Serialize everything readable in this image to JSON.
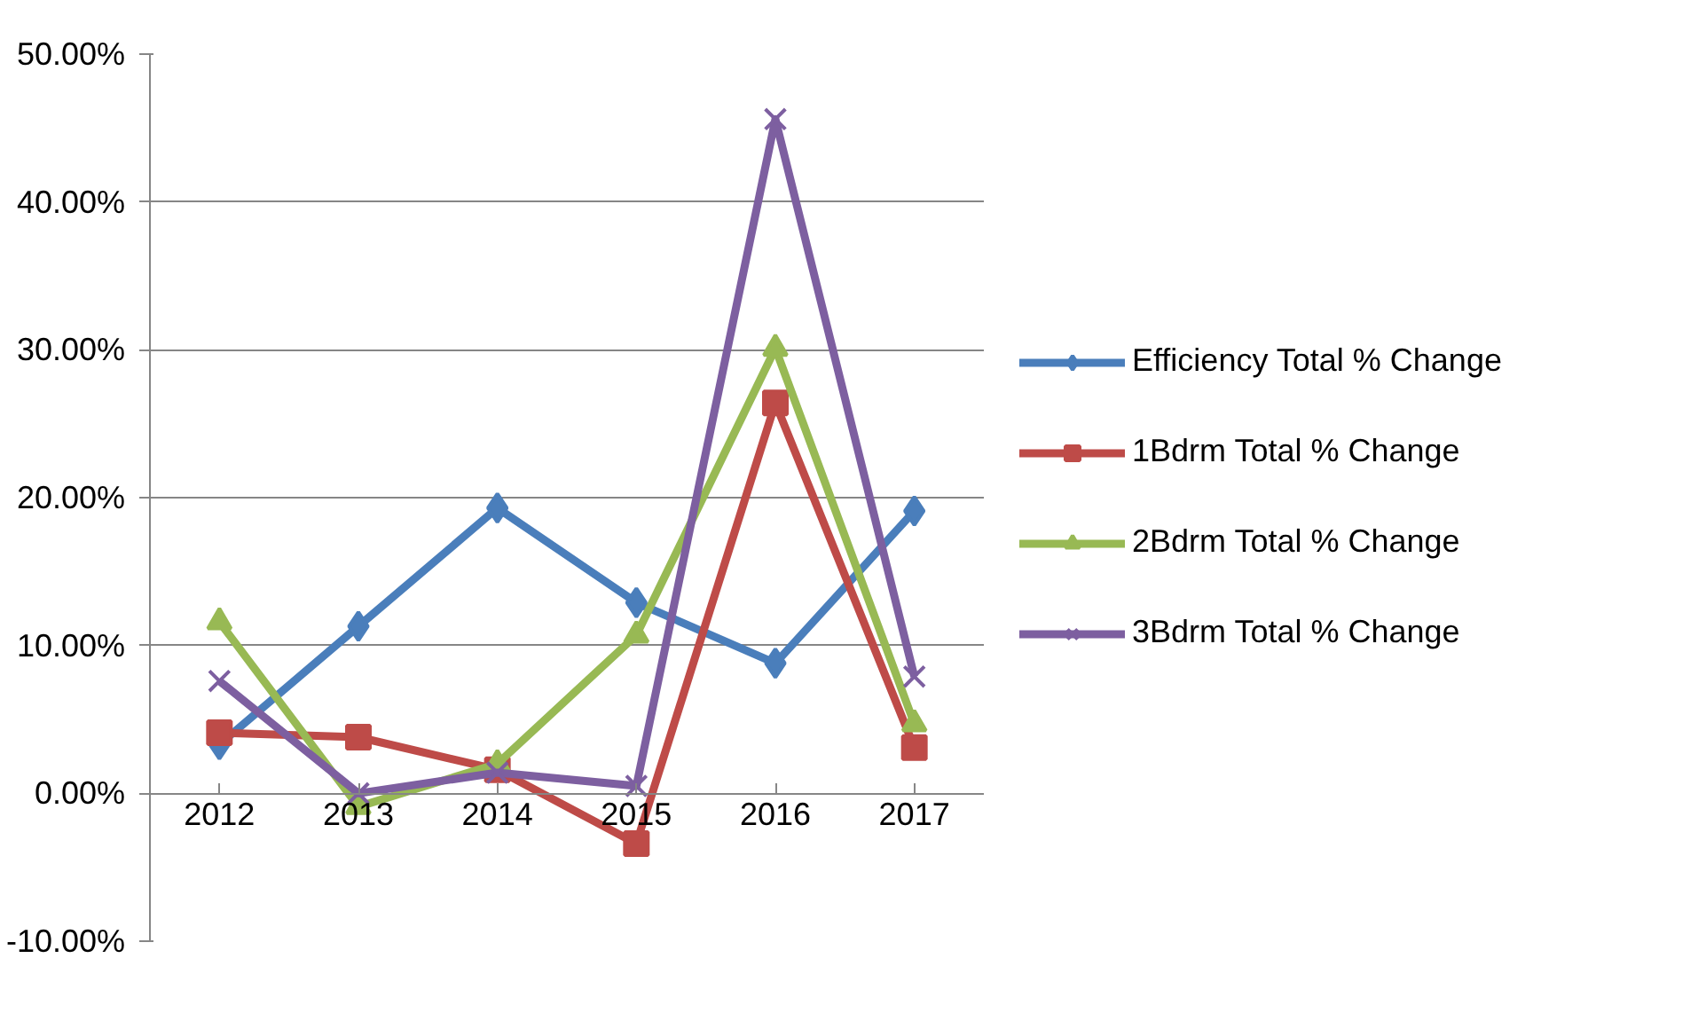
{
  "chart_data": {
    "type": "line",
    "categories": [
      "2012",
      "2013",
      "2014",
      "2015",
      "2016",
      "2017"
    ],
    "ylim": [
      -10,
      50
    ],
    "yticks": [
      {
        "value": -10,
        "label": "-10.00%"
      },
      {
        "value": 0,
        "label": "0.00%"
      },
      {
        "value": 10,
        "label": "10.00%"
      },
      {
        "value": 20,
        "label": "20.00%"
      },
      {
        "value": 30,
        "label": "30.00%"
      },
      {
        "value": 40,
        "label": "40.00%"
      },
      {
        "value": 50,
        "label": "50.00%"
      }
    ],
    "grid": "y",
    "legend": "right",
    "series": [
      {
        "name": "Efficiency Total % Change",
        "color": "#4a7ebb",
        "marker": "diamond",
        "values": [
          3.3,
          11.3,
          19.3,
          12.9,
          8.8,
          19.1
        ]
      },
      {
        "name": "1Bdrm Total % Change",
        "color": "#be4b48",
        "marker": "square",
        "values": [
          4.1,
          3.8,
          1.6,
          -3.4,
          26.4,
          3.1
        ]
      },
      {
        "name": "2Bdrm Total % Change",
        "color": "#98b954",
        "marker": "triangle",
        "values": [
          11.6,
          -0.9,
          2.0,
          10.7,
          30.1,
          4.7
        ]
      },
      {
        "name": "3Bdrm Total % Change",
        "color": "#7d5fa0",
        "marker": "x",
        "values": [
          7.6,
          0.0,
          1.4,
          0.5,
          45.6,
          7.9
        ]
      }
    ]
  }
}
